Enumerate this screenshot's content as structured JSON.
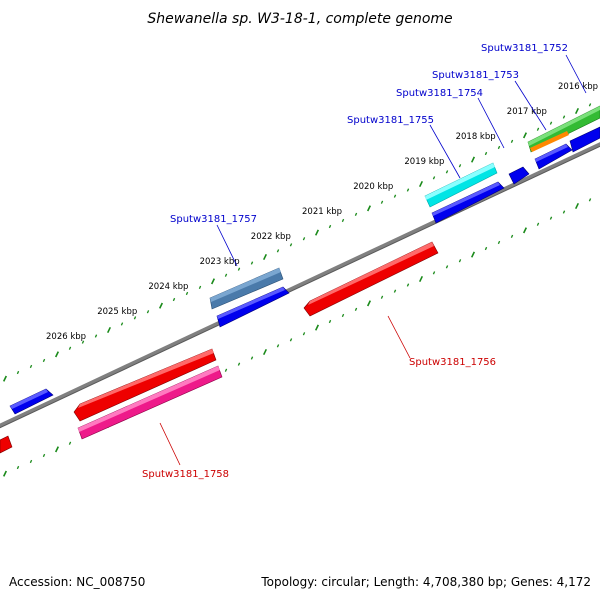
{
  "title": "Shewanella sp. W3-18-1, complete genome",
  "footer": {
    "accession": "Accession: NC_008750",
    "summary": "Topology: circular; Length: 4,708,380 bp; Genes: 4,172"
  },
  "scale_ticks": [
    {
      "label": "2016 kbp",
      "kbp": 2016
    },
    {
      "label": "2017 kbp",
      "kbp": 2017
    },
    {
      "label": "2018 kbp",
      "kbp": 2018
    },
    {
      "label": "2019 kbp",
      "kbp": 2019
    },
    {
      "label": "2020 kbp",
      "kbp": 2020
    },
    {
      "label": "2021 kbp",
      "kbp": 2021
    },
    {
      "label": "2022 kbp",
      "kbp": 2022
    },
    {
      "label": "2023 kbp",
      "kbp": 2023
    },
    {
      "label": "2024 kbp",
      "kbp": 2024
    },
    {
      "label": "2025 kbp",
      "kbp": 2025
    },
    {
      "label": "2026 kbp",
      "kbp": 2026
    }
  ],
  "gene_labels": [
    {
      "id": "1752",
      "text": "Sputw3181_1752",
      "color": "#0000cc"
    },
    {
      "id": "1753",
      "text": "Sputw3181_1753",
      "color": "#0000cc"
    },
    {
      "id": "1754",
      "text": "Sputw3181_1754",
      "color": "#0000cc"
    },
    {
      "id": "1755",
      "text": "Sputw3181_1755",
      "color": "#0000cc"
    },
    {
      "id": "1757",
      "text": "Sputw3181_1757",
      "color": "#0000cc"
    },
    {
      "id": "1756",
      "text": "Sputw3181_1756",
      "color": "#cc0000"
    },
    {
      "id": "1758",
      "text": "Sputw3181_1758",
      "color": "#cc0000"
    }
  ],
  "colors": {
    "backbone": "#7a7a7a",
    "tick_marks": "#1a8a1a",
    "cds_forward": "#0000ee",
    "cds_reverse": "#ee0000",
    "feature_cyan": "#00e5e5",
    "feature_steelblue": "#4a7aaa",
    "feature_pink": "#ee1a8a",
    "feature_green": "#33bb33",
    "feature_orange": "#ff8800"
  }
}
